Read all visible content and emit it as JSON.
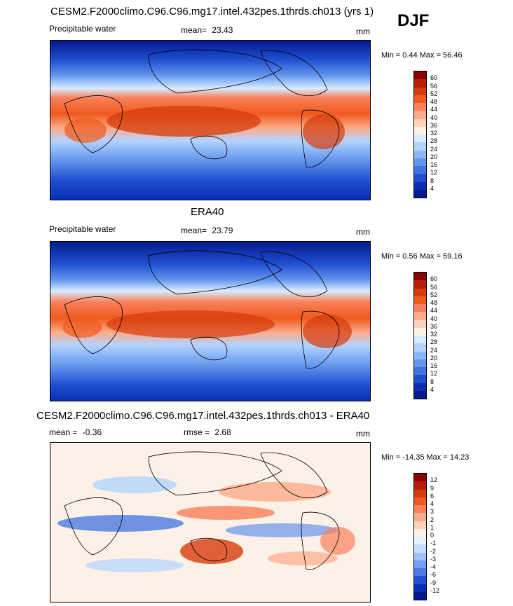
{
  "season": "DJF",
  "chart_data": [
    {
      "type": "heatmap",
      "title": "CESM2.F2000climo.C96.C96.mg17.intel.432pes.1thrds.ch013 (yrs 1)",
      "variable": "Precipitable water",
      "stat_label": "mean=",
      "stat_value": "23.43",
      "units": "mm",
      "range_label": "Min =   0.44 Max =  56.46",
      "min": 0.44,
      "max": 56.46,
      "mean": 23.43,
      "levels": [
        "4",
        "8",
        "12",
        "16",
        "20",
        "24",
        "28",
        "32",
        "36",
        "40",
        "44",
        "48",
        "52",
        "56",
        "60"
      ],
      "colors": [
        "#8b0000",
        "#b81d05",
        "#d63b0c",
        "#ef5a1e",
        "#f9805a",
        "#fcab8a",
        "#fdd2b8",
        "#fff2e6",
        "#d9ecff",
        "#b3d4ff",
        "#8bb6f7",
        "#6496ed",
        "#3f73e0",
        "#1f4fd0",
        "#0a2fb5",
        "#051a8f"
      ]
    },
    {
      "type": "heatmap",
      "title": "ERA40",
      "variable": "Precipitable water",
      "stat_label": "mean=",
      "stat_value": "23.79",
      "units": "mm",
      "range_label": "Min =   0.56 Max =  59.16",
      "min": 0.56,
      "max": 59.16,
      "mean": 23.79,
      "levels": [
        "4",
        "8",
        "12",
        "16",
        "20",
        "24",
        "28",
        "32",
        "36",
        "40",
        "44",
        "48",
        "52",
        "56",
        "60"
      ],
      "colors": [
        "#8b0000",
        "#b81d05",
        "#d63b0c",
        "#ef5a1e",
        "#f9805a",
        "#fcab8a",
        "#fdd2b8",
        "#fff2e6",
        "#d9ecff",
        "#b3d4ff",
        "#8bb6f7",
        "#6496ed",
        "#3f73e0",
        "#1f4fd0",
        "#0a2fb5",
        "#051a8f"
      ]
    },
    {
      "type": "heatmap",
      "title": "CESM2.F2000climo.C96.C96.mg17.intel.432pes.1thrds.ch013 - ERA40",
      "stat_label": "mean =",
      "stat_value": "-0.36",
      "stat2_label": "rmse =",
      "stat2_value": "2.68",
      "units": "mm",
      "range_label": "Min = -14.35 Max =  14.23",
      "min": -14.35,
      "max": 14.23,
      "mean": -0.36,
      "rmse": 2.68,
      "levels": [
        "-12",
        "-9",
        "-6",
        "-4",
        "-3",
        "-2",
        "-1",
        "0",
        "1",
        "2",
        "3",
        "4",
        "6",
        "9",
        "12"
      ],
      "colors": [
        "#8b0000",
        "#b81d05",
        "#d63b0c",
        "#ef5a1e",
        "#f9805a",
        "#fcab8a",
        "#fdd2b8",
        "#fff0e4",
        "#e6f1ff",
        "#c4dcff",
        "#9ec2f7",
        "#749ff0",
        "#4a79e2",
        "#2150d2",
        "#0a2fb5",
        "#051a8f"
      ]
    }
  ]
}
